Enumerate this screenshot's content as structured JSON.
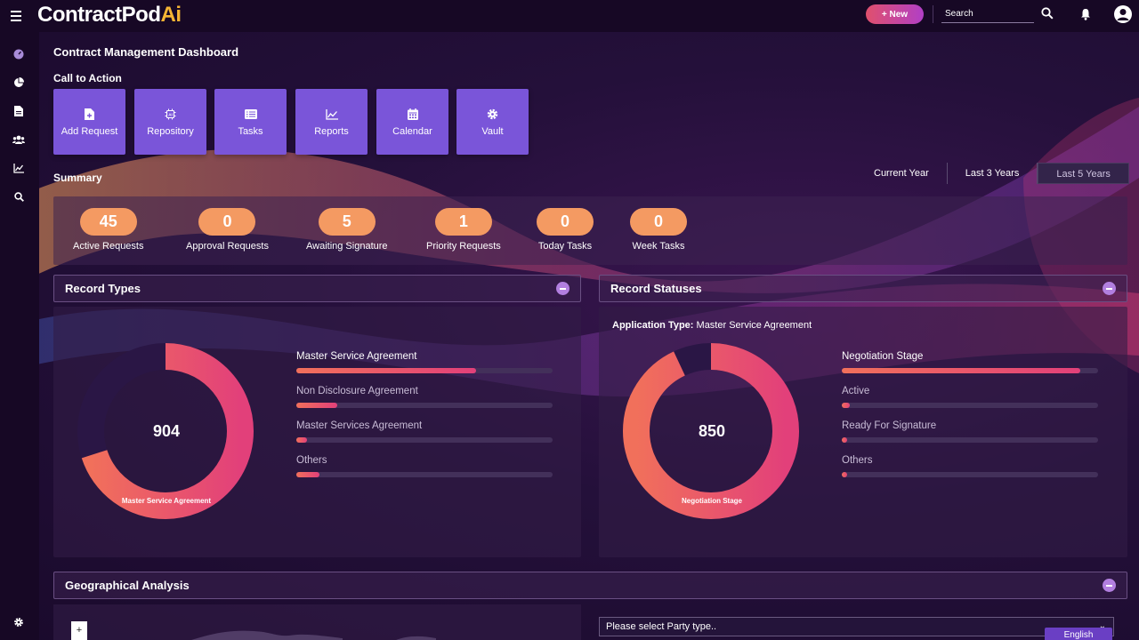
{
  "app": {
    "logo_main": "ContractPod",
    "logo_accent": "Ai"
  },
  "topbar": {
    "new_label": "+ New",
    "search_placeholder": "Search"
  },
  "page": {
    "title": "Contract Management Dashboard",
    "cta_title": "Call to Action",
    "summary_title": "Summary"
  },
  "cta": [
    {
      "label": "Add Request",
      "icon": "file-plus-icon"
    },
    {
      "label": "Repository",
      "icon": "ai-chip-icon"
    },
    {
      "label": "Tasks",
      "icon": "list-icon"
    },
    {
      "label": "Reports",
      "icon": "line-chart-icon"
    },
    {
      "label": "Calendar",
      "icon": "calendar-icon"
    },
    {
      "label": "Vault",
      "icon": "gear-icon"
    }
  ],
  "range_tabs": [
    "Current Year",
    "Last 3 Years",
    "Last 5 Years"
  ],
  "summary": [
    {
      "value": "45",
      "label": "Active Requests"
    },
    {
      "value": "0",
      "label": "Approval Requests"
    },
    {
      "value": "5",
      "label": "Awaiting Signature"
    },
    {
      "value": "1",
      "label": "Priority Requests"
    },
    {
      "value": "0",
      "label": "Today Tasks"
    },
    {
      "value": "0",
      "label": "Week Tasks"
    }
  ],
  "record_types": {
    "title": "Record Types",
    "total": "904",
    "donut_caption": "Master Service Agreement",
    "items": [
      {
        "label": "Master Service Agreement",
        "fraction": 0.7
      },
      {
        "label": "Non Disclosure Agreement",
        "fraction": 0.16
      },
      {
        "label": "Master Services Agreement",
        "fraction": 0.04
      },
      {
        "label": "Others",
        "fraction": 0.09
      }
    ]
  },
  "record_statuses": {
    "title": "Record Statuses",
    "app_type_label": "Application Type:",
    "app_type_value": "Master Service Agreement",
    "total": "850",
    "donut_caption": "Negotiation Stage",
    "items": [
      {
        "label": "Negotiation Stage",
        "fraction": 0.93
      },
      {
        "label": "Active",
        "fraction": 0.03
      },
      {
        "label": "Ready For Signature",
        "fraction": 0.02
      },
      {
        "label": "Others",
        "fraction": 0.02
      }
    ]
  },
  "geo": {
    "title": "Geographical Analysis",
    "zoom_label": "+",
    "party_placeholder": "Please select Party type..",
    "language": "English"
  },
  "colors": {
    "accent": "#7a55d9",
    "pill": "#f49a62",
    "donut_start": "#f1705b",
    "donut_end": "#e2407a"
  }
}
